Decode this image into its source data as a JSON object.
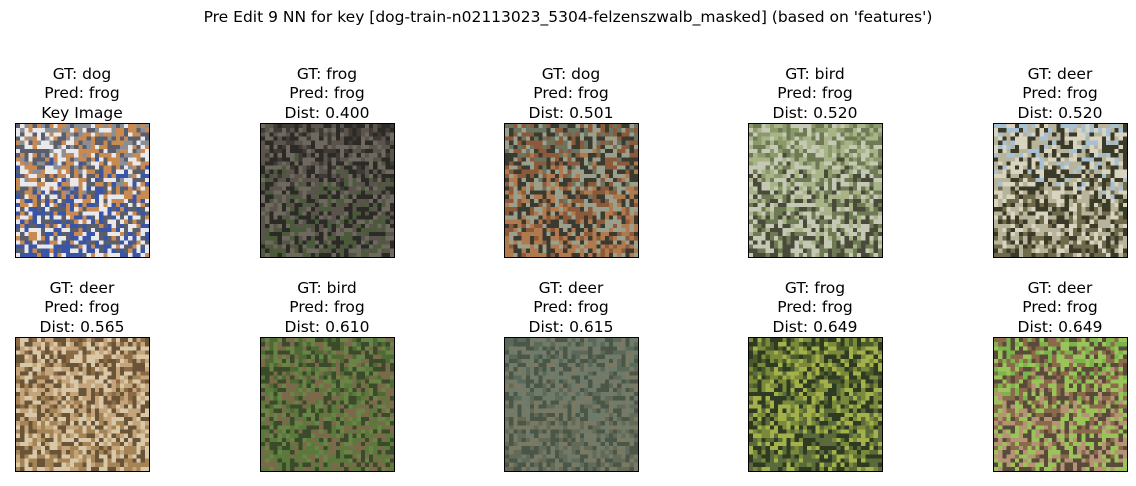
{
  "title": "Pre Edit 9 NN for key [dog-train-n02113023_5304-felzenszwalb_masked] (based on 'features')",
  "panels": [
    {
      "gt": "GT: dog",
      "pred": "Pred: frog",
      "extra": "Key Image",
      "palette": [
        "#8a8e96",
        "#c98a52",
        "#e9e9ec",
        "#5a5e6a",
        "#3a55a8"
      ]
    },
    {
      "gt": "GT: frog",
      "pred": "Pred: frog",
      "extra": "Dist: 0.400",
      "palette": [
        "#3f3a35",
        "#5a544c",
        "#2b2a26",
        "#6e685e",
        "#4c5a3c"
      ]
    },
    {
      "gt": "GT: dog",
      "pred": "Pred: frog",
      "extra": "Dist: 0.501",
      "palette": [
        "#6a7460",
        "#8a5a3a",
        "#3a3a30",
        "#9aa08c",
        "#b07a4e"
      ]
    },
    {
      "gt": "GT: bird",
      "pred": "Pred: frog",
      "extra": "Dist: 0.520",
      "palette": [
        "#8a9a6a",
        "#a8b488",
        "#6e7a54",
        "#c4c8b4",
        "#4a4a3a"
      ]
    },
    {
      "gt": "GT: deer",
      "pred": "Pred: frog",
      "extra": "Dist: 0.520",
      "palette": [
        "#a8c0d4",
        "#d8d4c0",
        "#3a3a28",
        "#b8b49c",
        "#6e6a4a"
      ]
    },
    {
      "gt": "GT: deer",
      "pred": "Pred: frog",
      "extra": "Dist: 0.565",
      "palette": [
        "#8a6a44",
        "#c4a47a",
        "#6a5438",
        "#d8c8a8",
        "#a48454"
      ]
    },
    {
      "gt": "GT: bird",
      "pred": "Pred: frog",
      "extra": "Dist: 0.610",
      "palette": [
        "#4e6a34",
        "#6a8448",
        "#3a4a2a",
        "#7a6a4a",
        "#5a7a3c"
      ]
    },
    {
      "gt": "GT: deer",
      "pred": "Pred: frog",
      "extra": "Dist: 0.615",
      "palette": [
        "#5a6a5a",
        "#6e7a6a",
        "#4a5648",
        "#7a7a64",
        "#646a58"
      ]
    },
    {
      "gt": "GT: frog",
      "pred": "Pred: frog",
      "extra": "Dist: 0.649",
      "palette": [
        "#4a5a2a",
        "#7a8a3a",
        "#2e3a22",
        "#a4b04a",
        "#5a6a3a"
      ]
    },
    {
      "gt": "GT: deer",
      "pred": "Pred: frog",
      "extra": "Dist: 0.649",
      "palette": [
        "#7ab44a",
        "#8a6a4a",
        "#5a4a3a",
        "#9ac45a",
        "#b49474"
      ]
    }
  ]
}
